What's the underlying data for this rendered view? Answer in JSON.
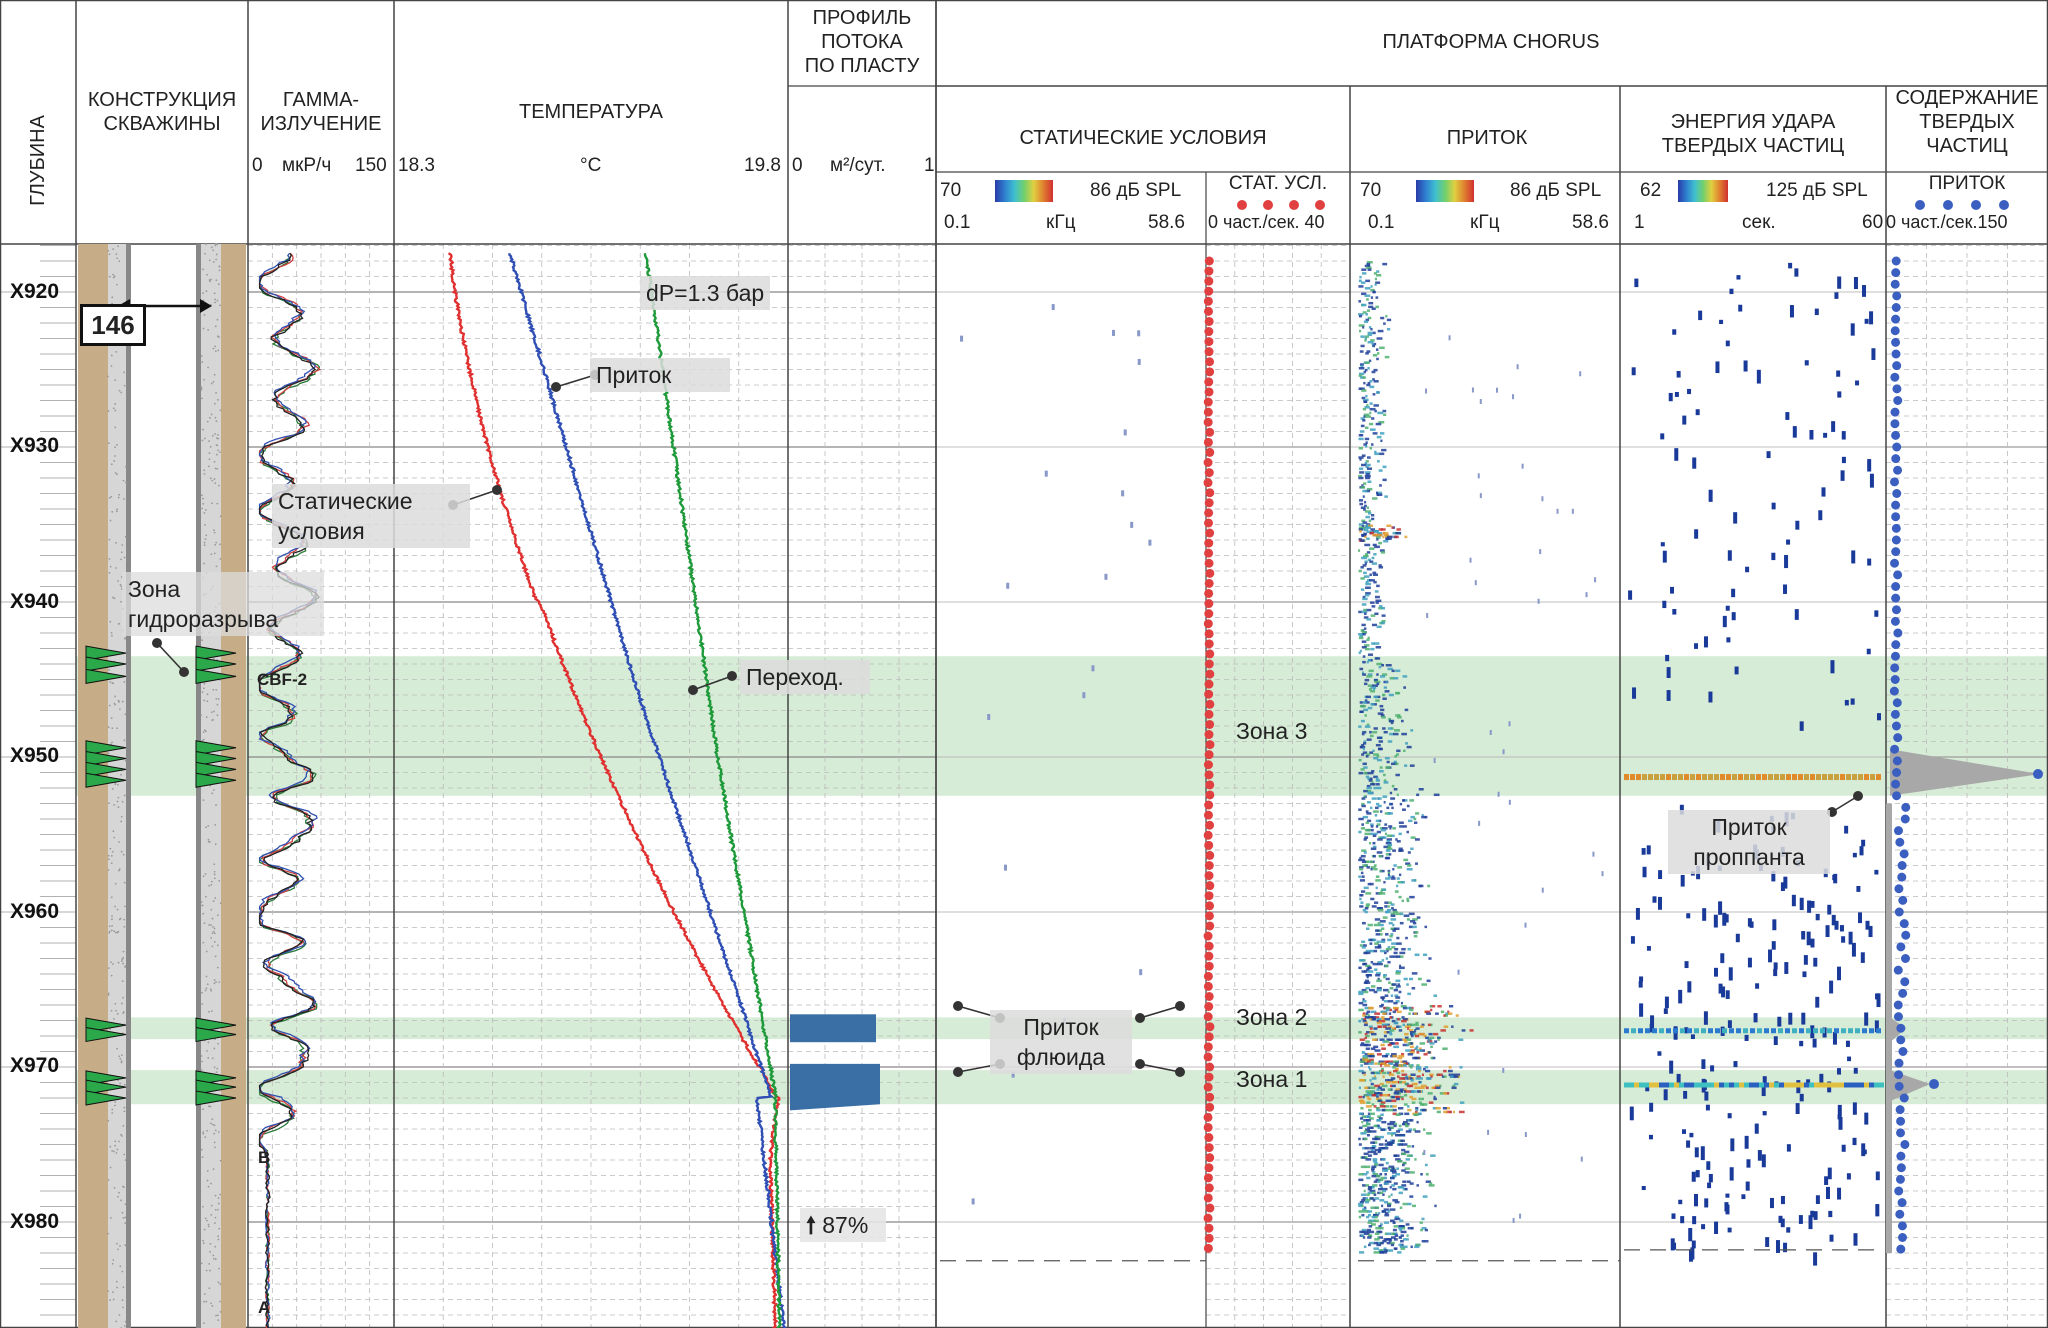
{
  "headers": {
    "depth": "ГЛУБИНА",
    "construction": [
      "КОНСТРУКЦИЯ",
      "СКВАЖИНЫ"
    ],
    "gamma": [
      "ГАММА-",
      "ИЗЛУЧЕНИЕ"
    ],
    "temperature": "ТЕМПЕРАТУРА",
    "flow_profile": [
      "ПРОФИЛЬ",
      "ПОТОКА",
      "ПО ПЛАСТУ"
    ],
    "chorus": "ПЛАТФОРМА CHORUS",
    "static": "СТАТИЧЕСКИЕ УСЛОВИЯ",
    "inflow": "ПРИТОК",
    "impact": [
      "ЭНЕРГИЯ УДАРА",
      "ТВЕРДЫХ ЧАСТИЦ"
    ],
    "solids": [
      "СОДЕРЖАНИЕ",
      "ТВЕРДЫХ",
      "ЧАСТИЦ"
    ],
    "stat_sub": "СТАТ. УСЛ.",
    "solids_sub": "ПРИТОК"
  },
  "scales": {
    "gamma": {
      "min": "0",
      "unit": "мкР/ч",
      "max": "150"
    },
    "temp": {
      "min": "18.3",
      "unit": "°C",
      "max": "19.8"
    },
    "flow": {
      "min": "0",
      "unit": "м²/сут.",
      "max": "1"
    },
    "static_db": {
      "min": "70",
      "max": "86 дБ SPL"
    },
    "static_khz": {
      "min": "0.1",
      "unit": "кГц",
      "max": "58.6"
    },
    "stat_rate": "0 част./сек. 40",
    "inflow_db": {
      "min": "70",
      "max": "86 дБ SPL"
    },
    "inflow_khz": {
      "min": "0.1",
      "unit": "кГц",
      "max": "58.6"
    },
    "impact_db": {
      "min": "62",
      "max": "125 дБ SPL"
    },
    "impact_sec": {
      "min": "1",
      "unit": "сек.",
      "max": "60"
    },
    "solids_rate": "0 част./сек.150"
  },
  "depths": [
    "X920",
    "X930",
    "X940",
    "X950",
    "X960",
    "X970",
    "X980"
  ],
  "casing_size": "146",
  "markers": {
    "cbf": "CBF-2",
    "b": "B",
    "a": "A"
  },
  "labels": {
    "dp": "dP=1.3 бар",
    "inflow_curve": "Приток",
    "static_curve": [
      "Статические",
      "условия"
    ],
    "frac_zone": [
      "Зона",
      "гидроразрыва"
    ],
    "transition": "Переход.",
    "fluid_inflow": [
      "Приток",
      "флюида"
    ],
    "proppant": [
      "Приток",
      "проппанта"
    ],
    "zone3": "Зона 3",
    "zone2": "Зона 2",
    "zone1": "Зона 1",
    "pct": "87%"
  },
  "colors": {
    "static_curve": "#e03030",
    "inflow_curve": "#2f4fb5",
    "transition_curve": "#1f9a3a",
    "zone_fill": "#cfe9cf",
    "flow_bar": "#3a6fa6",
    "solids_dot": "#3a5fc0",
    "stat_dot": "#e04040",
    "scatter": "#1a3a9a"
  },
  "flow_bars": [
    {
      "depth": "X967",
      "value": 0.55
    },
    {
      "depth": "X971",
      "value": 0.57
    }
  ]
}
